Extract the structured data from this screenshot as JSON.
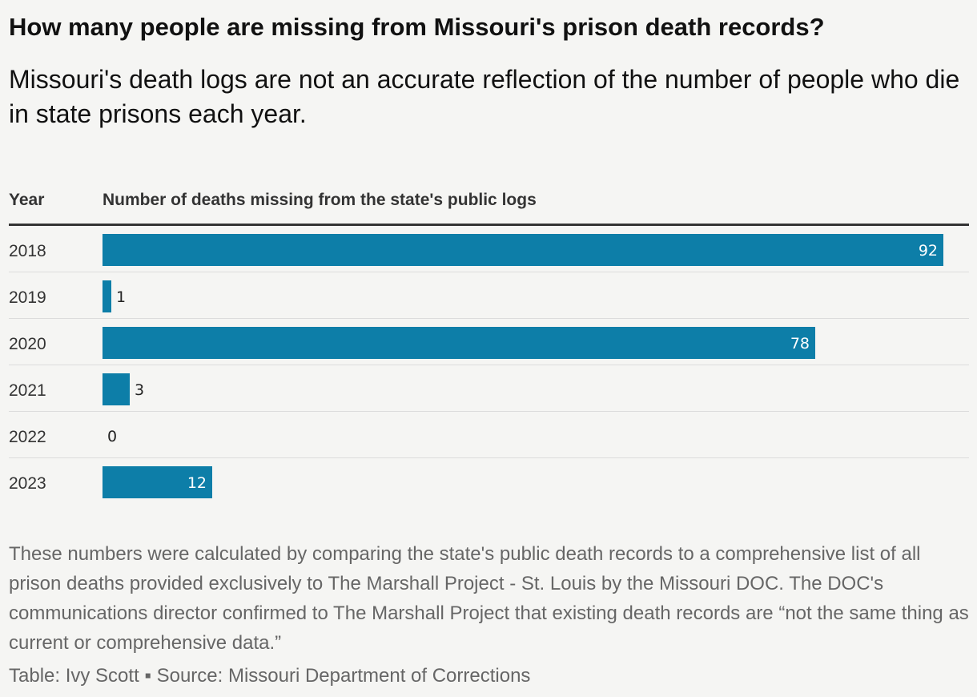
{
  "title": "How many people are missing from Missouri's prison death records?",
  "subtitle": "Missouri's death logs are not an accurate reflection of the number of people who die in state prisons each year.",
  "columns": {
    "year": "Year",
    "value": "Number of deaths missing from the state's public logs"
  },
  "notes": "These numbers were calculated by comparing the state's public death records to a comprehensive list of all prison deaths provided exclusively to The Marshall Project - St. Louis by the Missouri DOC. The DOC's communications director confirmed to The Marshall Project that existing death records are “not the same thing as current or comprehensive data.”",
  "source": "Table: Ivy Scott ▪ Source: Missouri Department of Corrections",
  "colors": {
    "bar": "#0d7ea8",
    "background": "#f5f5f3"
  },
  "chart_data": {
    "type": "bar",
    "orientation": "horizontal",
    "categories": [
      "2018",
      "2019",
      "2020",
      "2021",
      "2022",
      "2023"
    ],
    "values": [
      92,
      1,
      78,
      3,
      0,
      12
    ],
    "xlim": [
      0,
      92
    ]
  }
}
